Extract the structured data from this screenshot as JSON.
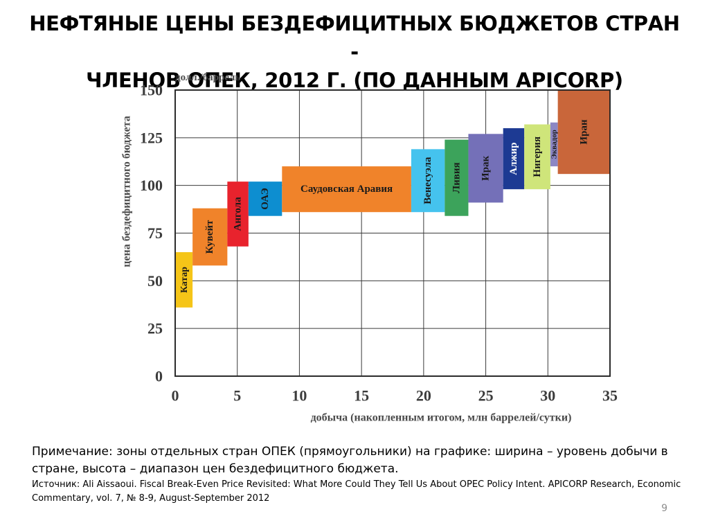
{
  "slide": {
    "title_line1": "НЕФТЯНЫЕ ЦЕНЫ БЕЗДЕФИЦИТНЫХ БЮДЖЕТОВ СТРАН -",
    "title_line2": "ЧЛЕНОВ ОПЕК, 2012 Г. (ПО ДАННЫМ APICORP)",
    "note": "Примечание:  зоны отдельных стран ОПЕК (прямоугольники) на графике: ширина – уровень добычи в стране, высота – диапазон цен бездефицитного бюджета.",
    "source": "Источник: Ali Aissaoui. Fiscal Break-Even Price Revisited: What More Could They Tell Us About OPEC Policy Intent. APICORP Research, Economic Commentary, vol. 7, № 8-9, August-September 2012",
    "page_number": "9"
  },
  "chart_data": {
    "type": "bar",
    "unit_label": "долл./баррель",
    "ylabel": "цена бездефицитного бюджета",
    "xlabel": "добыча (накопленным итогом, млн баррелей/сутки)",
    "xlim": [
      0,
      35
    ],
    "ylim": [
      0,
      150
    ],
    "xticks": [
      0,
      5,
      10,
      15,
      20,
      25,
      30,
      35
    ],
    "yticks": [
      0,
      25,
      50,
      75,
      100,
      125,
      150
    ],
    "grid": true,
    "legend": "none",
    "bars": [
      {
        "label": "Катар",
        "x0": 0,
        "x1": 1.4,
        "low": 36,
        "high": 65,
        "color": "#f5c518",
        "text_color": "#1a1a1a",
        "vertical": true
      },
      {
        "label": "Кувейт",
        "x0": 1.4,
        "x1": 4.2,
        "low": 58,
        "high": 88,
        "color": "#f0832a",
        "text_color": "#1a1a1a",
        "vertical": true
      },
      {
        "label": "Ангола",
        "x0": 4.2,
        "x1": 5.9,
        "low": 68,
        "high": 102,
        "color": "#e8232d",
        "text_color": "#1a1a1a",
        "vertical": true
      },
      {
        "label": "ОАЭ",
        "x0": 5.9,
        "x1": 8.6,
        "low": 84,
        "high": 102,
        "color": "#0d8ed0",
        "text_color": "#1a1a1a",
        "vertical": true
      },
      {
        "label": "Саудовская Аравия",
        "x0": 8.6,
        "x1": 19.0,
        "low": 86,
        "high": 110,
        "color": "#f0832a",
        "text_color": "#1a1a1a",
        "vertical": false
      },
      {
        "label": "Венесуэла",
        "x0": 19.0,
        "x1": 21.7,
        "low": 86,
        "high": 119,
        "color": "#45c3ee",
        "text_color": "#1a1a1a",
        "vertical": true
      },
      {
        "label": "Ливия",
        "x0": 21.7,
        "x1": 23.6,
        "low": 84,
        "high": 124,
        "color": "#3ca35b",
        "text_color": "#1a1a1a",
        "vertical": true
      },
      {
        "label": "Ирак",
        "x0": 23.6,
        "x1": 26.4,
        "low": 91,
        "high": 127,
        "color": "#7470b8",
        "text_color": "#1a1a1a",
        "vertical": true
      },
      {
        "label": "Алжир",
        "x0": 26.4,
        "x1": 28.1,
        "low": 98,
        "high": 130,
        "color": "#1d3a93",
        "text_color": "#ffffff",
        "vertical": true
      },
      {
        "label": "Нигерия",
        "x0": 28.1,
        "x1": 30.2,
        "low": 98,
        "high": 132,
        "color": "#cfe57a",
        "text_color": "#1a1a1a",
        "vertical": true
      },
      {
        "label": "Эквадор",
        "x0": 30.2,
        "x1": 30.8,
        "low": 110,
        "high": 133,
        "color": "#8c87c4",
        "text_color": "#1a1a1a",
        "vertical": true
      },
      {
        "label": "Иран",
        "x0": 30.8,
        "x1": 35,
        "low": 106,
        "high": 150,
        "color": "#c9663a",
        "text_color": "#1a1a1a",
        "vertical": true
      }
    ]
  }
}
